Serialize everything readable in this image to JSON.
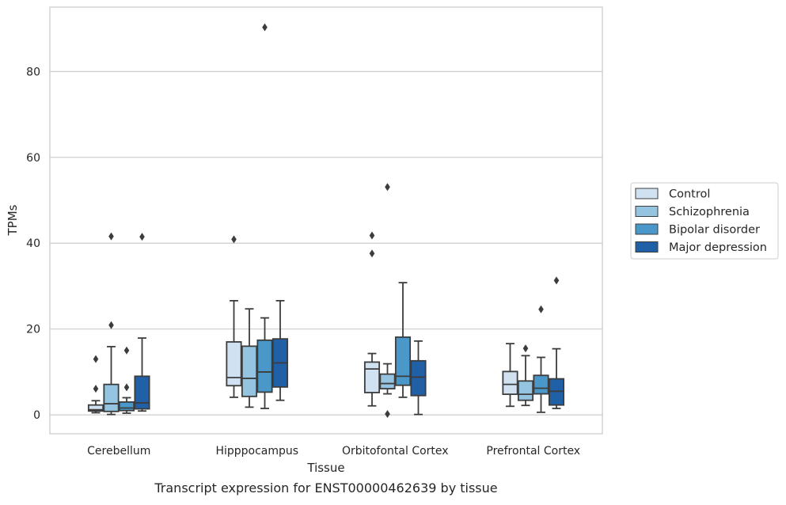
{
  "chart_data": {
    "type": "box",
    "title": "",
    "caption": "Transcript expression for ENST00000462639 by tissue",
    "xlabel": "Tissue",
    "ylabel": "TPMs",
    "ylim": [
      -4.4,
      95
    ],
    "yticks": [
      0,
      20,
      40,
      60,
      80
    ],
    "grid": "horizontal",
    "legend_position": "right",
    "categories": [
      "Cerebellum",
      "Hipppocampus",
      "Orbitofontal Cortex",
      "Prefrontal Cortex"
    ],
    "series": [
      {
        "name": "Control",
        "color": "#d0e1f2",
        "boxes": [
          {
            "whisker_low": 0.5,
            "q1": 0.9,
            "median": 1.2,
            "q3": 2.3,
            "whisker_high": 3.3,
            "outliers": [
              6.1,
              13.0
            ]
          },
          {
            "whisker_low": 4.1,
            "q1": 6.8,
            "median": 8.7,
            "q3": 17.0,
            "whisker_high": 26.6,
            "outliers": [
              40.9
            ]
          },
          {
            "whisker_low": 2.1,
            "q1": 5.2,
            "median": 10.7,
            "q3": 12.3,
            "whisker_high": 14.3,
            "outliers": [
              37.6,
              41.8
            ]
          },
          {
            "whisker_low": 2.0,
            "q1": 4.8,
            "median": 7.1,
            "q3": 10.1,
            "whisker_high": 16.6,
            "outliers": []
          }
        ]
      },
      {
        "name": "Schizophrenia",
        "color": "#94c4df",
        "boxes": [
          {
            "whisker_low": 0.1,
            "q1": 0.8,
            "median": 2.6,
            "q3": 7.1,
            "whisker_high": 15.9,
            "outliers": [
              20.9,
              41.6
            ]
          },
          {
            "whisker_low": 1.8,
            "q1": 4.3,
            "median": 8.5,
            "q3": 16.0,
            "whisker_high": 24.7,
            "outliers": []
          },
          {
            "whisker_low": 4.9,
            "q1": 6.1,
            "median": 7.3,
            "q3": 9.5,
            "whisker_high": 11.9,
            "outliers": [
              0.2,
              53.1
            ]
          },
          {
            "whisker_low": 2.2,
            "q1": 3.4,
            "median": 4.8,
            "q3": 7.9,
            "whisker_high": 13.8,
            "outliers": [
              15.5
            ]
          }
        ]
      },
      {
        "name": "Bipolar disorder",
        "color": "#4a98c9",
        "boxes": [
          {
            "whisker_low": 0.4,
            "q1": 1.0,
            "median": 1.6,
            "q3": 3.0,
            "whisker_high": 4.0,
            "outliers": [
              6.4,
              15.0
            ]
          },
          {
            "whisker_low": 1.5,
            "q1": 5.3,
            "median": 10.0,
            "q3": 17.4,
            "whisker_high": 22.6,
            "outliers": [
              90.3
            ]
          },
          {
            "whisker_low": 4.1,
            "q1": 6.9,
            "median": 9.0,
            "q3": 18.1,
            "whisker_high": 30.8,
            "outliers": []
          },
          {
            "whisker_low": 0.6,
            "q1": 4.9,
            "median": 6.2,
            "q3": 9.2,
            "whisker_high": 13.4,
            "outliers": [
              24.6
            ]
          }
        ]
      },
      {
        "name": "Major depression",
        "color": "#2060a7",
        "boxes": [
          {
            "whisker_low": 0.9,
            "q1": 1.4,
            "median": 2.8,
            "q3": 9.0,
            "whisker_high": 17.9,
            "outliers": [
              41.5
            ]
          },
          {
            "whisker_low": 3.4,
            "q1": 6.5,
            "median": 12.1,
            "q3": 17.7,
            "whisker_high": 26.6,
            "outliers": []
          },
          {
            "whisker_low": 0.1,
            "q1": 4.5,
            "median": 8.8,
            "q3": 12.6,
            "whisker_high": 17.2,
            "outliers": []
          },
          {
            "whisker_low": 1.5,
            "q1": 2.3,
            "median": 5.5,
            "q3": 8.4,
            "whisker_high": 15.4,
            "outliers": [
              31.3
            ]
          }
        ]
      }
    ]
  }
}
